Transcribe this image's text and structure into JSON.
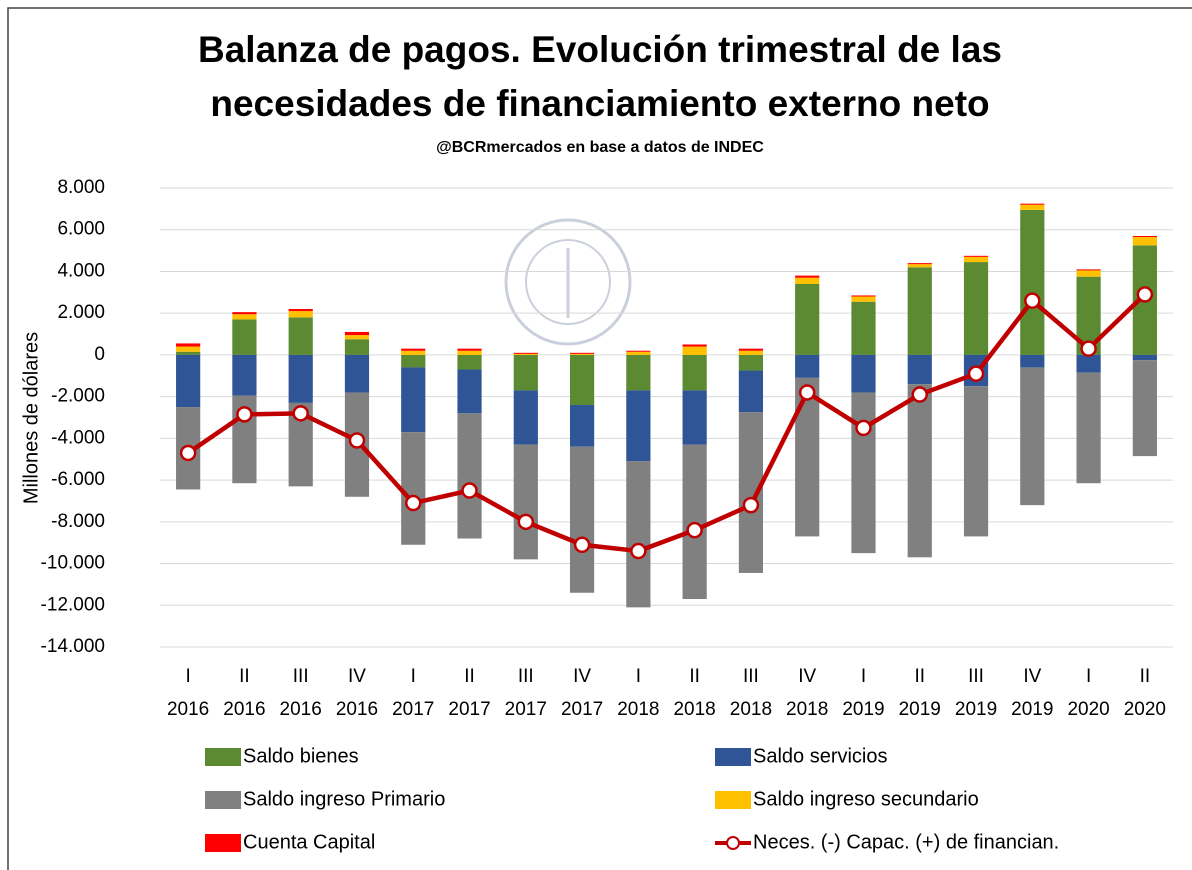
{
  "chart_data": {
    "type": "bar",
    "title": [
      "Balanza de pagos. Evolución trimestral de las",
      "necesidades de financiamiento externo neto"
    ],
    "subtitle": "@BCRmercados en base a datos de INDEC",
    "y_label": "Millones de dólares",
    "stacked": true,
    "grid": true,
    "categories": [
      [
        "I",
        "2016"
      ],
      [
        "II",
        "2016"
      ],
      [
        "III",
        "2016"
      ],
      [
        "IV",
        "2016"
      ],
      [
        "I",
        "2017"
      ],
      [
        "II",
        "2017"
      ],
      [
        "III",
        "2017"
      ],
      [
        "IV",
        "2017"
      ],
      [
        "I",
        "2018"
      ],
      [
        "II",
        "2018"
      ],
      [
        "III",
        "2018"
      ],
      [
        "IV",
        "2018"
      ],
      [
        "I",
        "2019"
      ],
      [
        "II",
        "2019"
      ],
      [
        "III",
        "2019"
      ],
      [
        "IV",
        "2019"
      ],
      [
        "I",
        "2020"
      ],
      [
        "II",
        "2020"
      ]
    ],
    "series": [
      {
        "name": "Saldo bienes",
        "color": "#5b8a32",
        "values": [
          150,
          1700,
          1800,
          750,
          -600,
          -700,
          -1700,
          -2400,
          -1700,
          -1700,
          -750,
          3400,
          2550,
          4200,
          4450,
          6950,
          3750,
          5250
        ]
      },
      {
        "name": "Saldo servicios",
        "color": "#2f5597",
        "values": [
          -2500,
          -1950,
          -2300,
          -1800,
          -3100,
          -2100,
          -2600,
          -2000,
          -3400,
          -2600,
          -2000,
          -1100,
          -1800,
          -1400,
          -1500,
          -600,
          -850,
          -250
        ]
      },
      {
        "name": "Saldo ingreso Primario",
        "color": "#808080",
        "values": [
          -3950,
          -4200,
          -4000,
          -5000,
          -5400,
          -6000,
          -5500,
          -7000,
          -7000,
          -7400,
          -7700,
          -7600,
          -7700,
          -8300,
          -7200,
          -6600,
          -5300,
          -4600
        ]
      },
      {
        "name": "Saldo ingreso secundario",
        "color": "#ffc000",
        "values": [
          250,
          250,
          300,
          200,
          200,
          200,
          50,
          50,
          150,
          400,
          200,
          300,
          250,
          150,
          250,
          250,
          300,
          400
        ]
      },
      {
        "name": "Cuenta Capital",
        "color": "#ff0000",
        "values": [
          150,
          100,
          100,
          150,
          100,
          100,
          50,
          50,
          50,
          100,
          100,
          100,
          50,
          50,
          50,
          50,
          50,
          50
        ]
      },
      {
        "name": "Neces. (-) Capac. (+) de financian.",
        "color": "#c00000",
        "type": "line",
        "values": [
          -4700,
          -2850,
          -2800,
          -4100,
          -7100,
          -6500,
          -8000,
          -9100,
          -9400,
          -8400,
          -7200,
          -1800,
          -3500,
          -1900,
          -900,
          2600,
          300,
          2900
        ]
      }
    ],
    "ylim": [
      -14000,
      8000
    ],
    "yticks": [
      {
        "value": -14000,
        "label": "-14.000"
      },
      {
        "value": -12000,
        "label": "-12.000"
      },
      {
        "value": -10000,
        "label": "-10.000"
      },
      {
        "value": -8000,
        "label": "-8.000"
      },
      {
        "value": -6000,
        "label": "-6.000"
      },
      {
        "value": -4000,
        "label": "-4.000"
      },
      {
        "value": -2000,
        "label": "-2.000"
      },
      0,
      {
        "value": 2000,
        "label": "2.000"
      },
      {
        "value": 4000,
        "label": "4.000"
      },
      {
        "value": 6000,
        "label": "6.000"
      },
      {
        "value": 8000,
        "label": "8.000"
      }
    ]
  }
}
